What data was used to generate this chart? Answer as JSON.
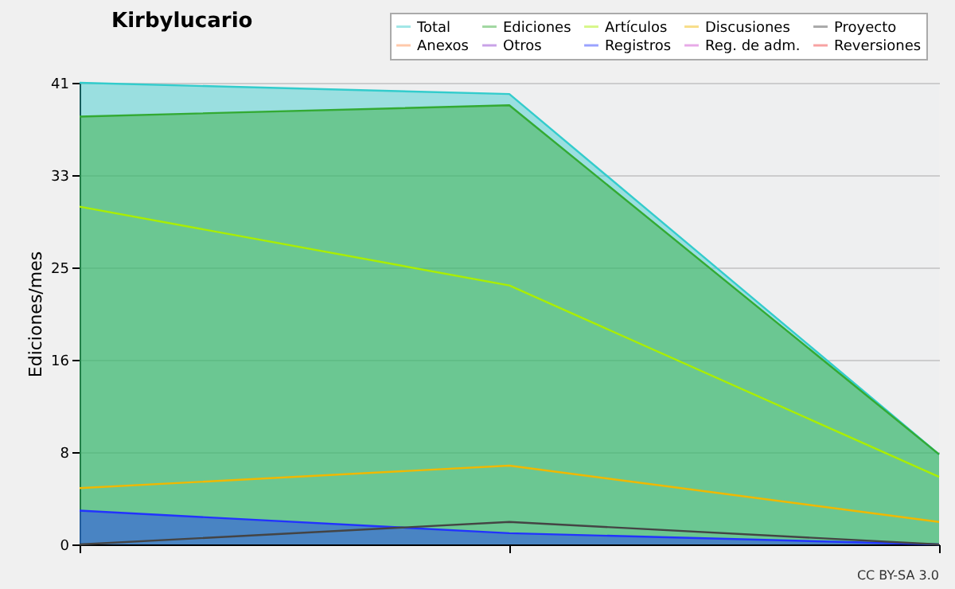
{
  "chart_data": {
    "type": "line",
    "title": "Kirbylucario",
    "ylabel": "Ediciones/mes",
    "categories": [
      null,
      null,
      null
    ],
    "ylim": [
      0,
      41
    ],
    "yticks": [
      0,
      {
        "value": 8.2,
        "label": "8"
      },
      {
        "value": 16.4,
        "label": "16"
      },
      {
        "value": 24.6,
        "label": "25"
      },
      {
        "value": 32.8,
        "label": "33"
      },
      41
    ],
    "grid": "y",
    "legend": "top right",
    "annotations": [
      "CC BY-SA 3.0"
    ],
    "series": [
      {
        "name": "Total",
        "type": "area",
        "color": "#33cccc",
        "values": [
          41,
          40,
          8
        ]
      },
      {
        "name": "Anexos",
        "color": "#ff8844",
        "values": [
          null,
          null,
          null
        ]
      },
      {
        "name": "Ediciones",
        "type": "area",
        "color": "#33aa33",
        "values": [
          38,
          39,
          8
        ]
      },
      {
        "name": "Otros",
        "color": "#8833cc",
        "values": [
          null,
          null,
          null
        ]
      },
      {
        "name": "Artículos",
        "color": "#aaee00",
        "values": [
          30,
          23,
          6
        ]
      },
      {
        "name": "Registros",
        "type": "area",
        "color": "#2233ff",
        "values": [
          3,
          1,
          0
        ]
      },
      {
        "name": "Discusiones",
        "color": "#f0b800",
        "values": [
          5,
          7,
          2
        ]
      },
      {
        "name": "Reg. de adm.",
        "color": "#cc44cc",
        "values": [
          null,
          null,
          null
        ]
      },
      {
        "name": "Proyecto",
        "color": "#444444",
        "values": [
          0,
          2,
          0
        ]
      },
      {
        "name": "Reversiones",
        "color": "#ee3333",
        "values": [
          null,
          null,
          null
        ]
      }
    ]
  }
}
